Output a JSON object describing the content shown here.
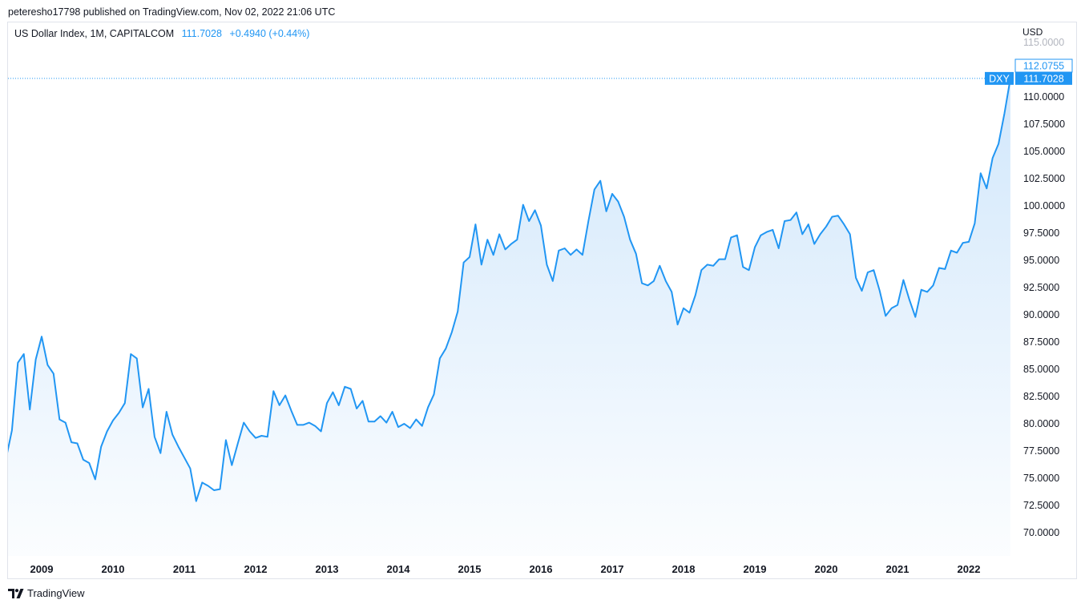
{
  "header": {
    "published_line": "peteresho17798 published on TradingView.com, Nov 02, 2022 21:06 UTC"
  },
  "legend": {
    "symbol_text": "US Dollar Index, 1M, CAPITALCOM",
    "last_value": "111.7028",
    "change": "+0.4940 (+0.44%)"
  },
  "price_axis": {
    "currency": "USD",
    "top_label": "115.0000",
    "high_tag": "112.0755",
    "symbol_tag": "DXY",
    "last_tag": "111.7028"
  },
  "footer": {
    "brand": "TradingView"
  },
  "colors": {
    "line": "#2196f3",
    "fill_top": "#cfe6fb",
    "grid_text": "#131722",
    "tag_bg": "#2196f3"
  },
  "icons": {
    "logo": "tradingview-logo-icon"
  },
  "chart_data": {
    "type": "area",
    "title": "US Dollar Index, 1M, CAPITALCOM",
    "xlabel": "",
    "ylabel": "",
    "x_ticks": [
      "2009",
      "2010",
      "2011",
      "2012",
      "2013",
      "2014",
      "2015",
      "2016",
      "2017",
      "2018",
      "2019",
      "2020",
      "2021",
      "2022"
    ],
    "y_ticks": [
      "70.0000",
      "72.5000",
      "75.0000",
      "77.5000",
      "80.0000",
      "82.5000",
      "85.0000",
      "87.5000",
      "90.0000",
      "92.5000",
      "95.0000",
      "97.5000",
      "100.0000",
      "102.5000",
      "105.0000",
      "107.5000",
      "110.0000"
    ],
    "ylim": [
      68.5,
      115.0
    ],
    "grid": false,
    "x_start": "2008-06",
    "x_end": "2022-11",
    "series": [
      {
        "values": [
          74.7,
          76.8,
          79.4,
          85.6,
          86.4,
          81.3,
          85.9,
          88.0,
          85.4,
          84.6,
          80.4,
          80.1,
          78.3,
          78.2,
          76.7,
          76.4,
          74.9,
          77.9,
          79.3,
          80.3,
          81.0,
          81.9,
          86.4,
          86.0,
          81.5,
          83.2,
          78.8,
          77.3,
          81.1,
          79.0,
          77.9,
          76.9,
          75.9,
          72.9,
          74.6,
          74.3,
          73.9,
          74.0,
          78.5,
          76.2,
          78.2,
          80.1,
          79.3,
          78.7,
          78.9,
          78.8,
          83.0,
          81.7,
          82.6,
          81.2,
          79.9,
          79.9,
          80.1,
          79.8,
          79.3,
          81.9,
          82.9,
          81.7,
          83.4,
          83.2,
          81.4,
          82.1,
          80.2,
          80.2,
          80.7,
          80.1,
          81.1,
          79.7,
          80.0,
          79.6,
          80.4,
          79.8,
          81.5,
          82.7,
          86.0,
          86.9,
          88.4,
          90.3,
          94.8,
          95.3,
          98.3,
          94.6,
          96.9,
          95.5,
          97.4,
          96.0,
          96.5,
          96.9,
          100.1,
          98.6,
          99.6,
          98.2,
          94.6,
          93.1,
          95.9,
          96.1,
          95.5,
          96.0,
          95.5,
          98.6,
          101.5,
          102.3,
          99.5,
          101.1,
          100.4,
          99.0,
          96.9,
          95.6,
          92.9,
          92.7,
          93.1,
          94.5,
          93.1,
          92.1,
          89.1,
          90.6,
          90.2,
          91.8,
          94.1,
          94.6,
          94.5,
          95.1,
          95.1,
          97.1,
          97.3,
          94.4,
          94.1,
          96.2,
          97.3,
          97.6,
          97.8,
          96.1,
          98.6,
          98.7,
          99.4,
          97.4,
          98.3,
          96.5,
          97.4,
          98.1,
          99.0,
          99.1,
          98.3,
          97.4,
          93.4,
          92.2,
          93.9,
          94.1,
          92.2,
          89.9,
          90.6,
          90.9,
          93.2,
          91.4,
          89.8,
          92.3,
          92.1,
          92.7,
          94.3,
          94.2,
          95.9,
          95.7,
          96.6,
          96.7,
          98.4,
          103.0,
          101.6,
          104.4,
          105.7,
          108.5,
          111.7
        ]
      }
    ]
  }
}
